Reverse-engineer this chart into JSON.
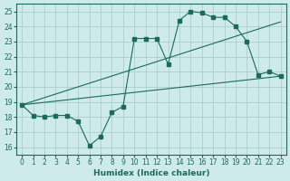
{
  "xlabel": "Humidex (Indice chaleur)",
  "bg_color": "#ceeaea",
  "grid_color": "#aacece",
  "line_color": "#1a6b5a",
  "ylim": [
    15.5,
    25.5
  ],
  "xlim": [
    -0.5,
    23.5
  ],
  "yticks": [
    16,
    17,
    18,
    19,
    20,
    21,
    22,
    23,
    24,
    25
  ],
  "xticks": [
    0,
    1,
    2,
    3,
    4,
    5,
    6,
    7,
    8,
    9,
    10,
    11,
    12,
    13,
    14,
    15,
    16,
    17,
    18,
    19,
    20,
    21,
    22,
    23
  ],
  "main_x": [
    0,
    1,
    2,
    3,
    4,
    5,
    6,
    7,
    8,
    9,
    10,
    11,
    12,
    13,
    14,
    15,
    16,
    17,
    18,
    19,
    20,
    21,
    22,
    23
  ],
  "main_y": [
    18.8,
    18.1,
    18.0,
    18.1,
    18.1,
    17.7,
    16.1,
    16.7,
    18.3,
    18.7,
    23.2,
    23.2,
    23.2,
    21.5,
    24.4,
    25.0,
    24.9,
    24.6,
    24.6,
    24.0,
    23.0,
    20.8,
    21.0,
    20.7
  ],
  "line2_x": [
    0,
    23
  ],
  "line2_y": [
    18.8,
    24.3
  ],
  "line3_x": [
    0,
    23
  ],
  "line3_y": [
    18.8,
    20.7
  ],
  "marker": "s",
  "markersize": 2.5,
  "lw": 0.8
}
